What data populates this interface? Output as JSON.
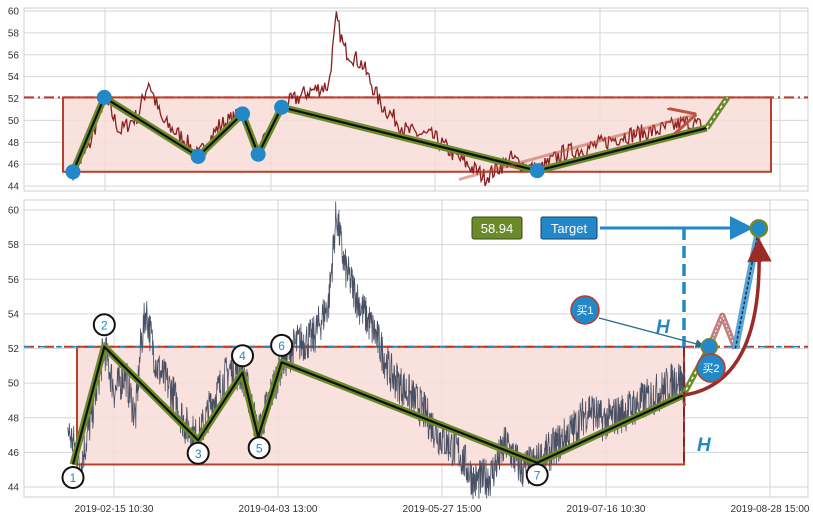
{
  "chart_data": [
    {
      "type": "line",
      "panel": "top",
      "ylim": [
        44,
        60
      ],
      "yticks": [
        "60",
        "58",
        "56",
        "54",
        "52",
        "50",
        "48",
        "46",
        "44"
      ],
      "grid": true,
      "resistance_level": 52.1,
      "box": {
        "y_top": 52.1,
        "y_bottom": 45.3
      },
      "pivots": [
        {
          "day": 2,
          "value": 45.3
        },
        {
          "day": 14,
          "value": 52.1
        },
        {
          "day": 50,
          "value": 46.7
        },
        {
          "day": 67,
          "value": 50.6
        },
        {
          "day": 73,
          "value": 46.9
        },
        {
          "day": 82,
          "value": 51.2
        },
        {
          "day": 180,
          "value": 45.4
        },
        {
          "day": 245,
          "value": 49.3
        },
        {
          "day": 253,
          "value": 52.1
        }
      ],
      "price_anchors": [
        [
          2,
          45.3
        ],
        [
          8,
          47.5
        ],
        [
          14,
          52.1
        ],
        [
          20,
          49.0
        ],
        [
          27,
          50.5
        ],
        [
          31,
          53.6
        ],
        [
          36,
          50.0
        ],
        [
          45,
          48.2
        ],
        [
          50,
          46.7
        ],
        [
          58,
          49.5
        ],
        [
          67,
          50.6
        ],
        [
          73,
          46.9
        ],
        [
          82,
          51.2
        ],
        [
          92,
          52.6
        ],
        [
          100,
          53.2
        ],
        [
          103,
          59.3
        ],
        [
          106,
          56.5
        ],
        [
          113,
          55.1
        ],
        [
          120,
          51.5
        ],
        [
          130,
          49.0
        ],
        [
          140,
          48.5
        ],
        [
          150,
          46.5
        ],
        [
          160,
          44.8
        ],
        [
          170,
          46.5
        ],
        [
          180,
          45.4
        ],
        [
          190,
          47.0
        ],
        [
          200,
          47.5
        ],
        [
          213,
          48.6
        ],
        [
          225,
          49.0
        ],
        [
          237,
          49.8
        ],
        [
          243,
          49.5
        ]
      ]
    },
    {
      "type": "line",
      "panel": "bottom",
      "ylim": [
        43.5,
        60.5
      ],
      "yticks": [
        "60",
        "58",
        "56",
        "54",
        "52",
        "50",
        "48",
        "46",
        "44"
      ],
      "grid": true,
      "resistance_level": 52.1,
      "target_level": 58.94,
      "box": {
        "y_top": 52.1,
        "y_bottom": 45.3
      },
      "xticks": [
        "2019-02-15 10:30",
        "2019-04-03 13:00",
        "2019-05-27 15:00",
        "2019-07-16 10:30",
        "2019-08-28 15:00"
      ],
      "pivots": [
        {
          "label": "1",
          "day": 2,
          "value": 45.3
        },
        {
          "label": "2",
          "day": 14,
          "value": 52.1
        },
        {
          "label": "3",
          "day": 50,
          "value": 46.7
        },
        {
          "label": "4",
          "day": 67,
          "value": 50.6
        },
        {
          "label": "5",
          "day": 73,
          "value": 46.9
        },
        {
          "label": "6",
          "day": 82,
          "value": 51.2
        },
        {
          "label": "7",
          "day": 180,
          "value": 45.4
        }
      ],
      "trend_end": {
        "day": 236,
        "value": 49.3
      },
      "breakout": {
        "day": 246,
        "value": 52.1
      },
      "retest": {
        "day": 256,
        "value": 52.0
      },
      "target": {
        "day": 265,
        "value": 58.94
      },
      "labels": {
        "target_value": "58.94",
        "target_button": "Target",
        "buy1": "买1",
        "buy2": "买2",
        "height_mark": "H"
      },
      "colors": {
        "price": "#4a5063",
        "trend_outer": "#6b8a2a",
        "trend_inner": "#111111",
        "box": "#b7412a",
        "box_fill": "#f8ddd8",
        "accent_blue": "#2288c8",
        "arrow_red": "#9a2b25"
      },
      "price_anchors": [
        [
          0,
          47.3
        ],
        [
          3,
          46.2
        ],
        [
          5,
          45.3
        ],
        [
          9,
          48.0
        ],
        [
          14,
          52.1
        ],
        [
          18,
          49.5
        ],
        [
          22,
          50.6
        ],
        [
          26,
          48.0
        ],
        [
          28,
          52.2
        ],
        [
          30,
          54.2
        ],
        [
          34,
          51.0
        ],
        [
          40,
          49.5
        ],
        [
          45,
          47.6
        ],
        [
          50,
          46.7
        ],
        [
          55,
          48.8
        ],
        [
          62,
          50.8
        ],
        [
          67,
          50.6
        ],
        [
          70,
          49.0
        ],
        [
          73,
          46.9
        ],
        [
          76,
          48.5
        ],
        [
          82,
          51.2
        ],
        [
          88,
          52.3
        ],
        [
          94,
          52.6
        ],
        [
          100,
          54.6
        ],
        [
          103,
          59.8
        ],
        [
          106,
          56.8
        ],
        [
          112,
          54.5
        ],
        [
          118,
          52.8
        ],
        [
          124,
          50.5
        ],
        [
          130,
          49.5
        ],
        [
          136,
          48.5
        ],
        [
          142,
          47.0
        ],
        [
          150,
          46.0
        ],
        [
          156,
          44.3
        ],
        [
          162,
          44.6
        ],
        [
          168,
          46.5
        ],
        [
          174,
          45.0
        ],
        [
          180,
          45.4
        ],
        [
          188,
          46.5
        ],
        [
          195,
          47.5
        ],
        [
          200,
          48.6
        ],
        [
          205,
          47.8
        ],
        [
          213,
          48.3
        ],
        [
          220,
          48.9
        ],
        [
          228,
          49.6
        ],
        [
          234,
          50.3
        ],
        [
          237,
          49.8
        ]
      ]
    }
  ]
}
